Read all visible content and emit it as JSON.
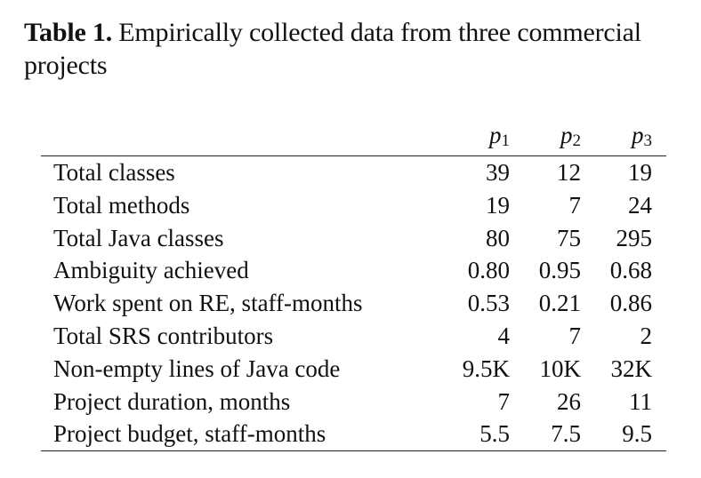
{
  "caption": {
    "label": "Table 1.",
    "text": " Empirically collected data from three commercial projects"
  },
  "table": {
    "headers": [
      {
        "main": "p",
        "sub": "1"
      },
      {
        "main": "p",
        "sub": "2"
      },
      {
        "main": "p",
        "sub": "3"
      }
    ],
    "rows": [
      {
        "name": "Total classes",
        "values": [
          "39",
          "12",
          "19"
        ]
      },
      {
        "name": "Total methods",
        "values": [
          "19",
          "7",
          "24"
        ]
      },
      {
        "name": "Total Java classes",
        "values": [
          "80",
          "75",
          "295"
        ]
      },
      {
        "name": "Ambiguity achieved",
        "values": [
          "0.80",
          "0.95",
          "0.68"
        ]
      },
      {
        "name": "Work spent on RE, staff-months",
        "values": [
          "0.53",
          "0.21",
          "0.86"
        ]
      },
      {
        "name": "Total SRS contributors",
        "values": [
          "4",
          "7",
          "2"
        ]
      },
      {
        "name": "Non-empty lines of Java code",
        "values": [
          "9.5K",
          "10K",
          "32K"
        ]
      },
      {
        "name": "Project duration, months",
        "values": [
          "7",
          "26",
          "11"
        ]
      },
      {
        "name": "Project budget, staff-months",
        "values": [
          "5.5",
          "7.5",
          "9.5"
        ]
      }
    ]
  }
}
